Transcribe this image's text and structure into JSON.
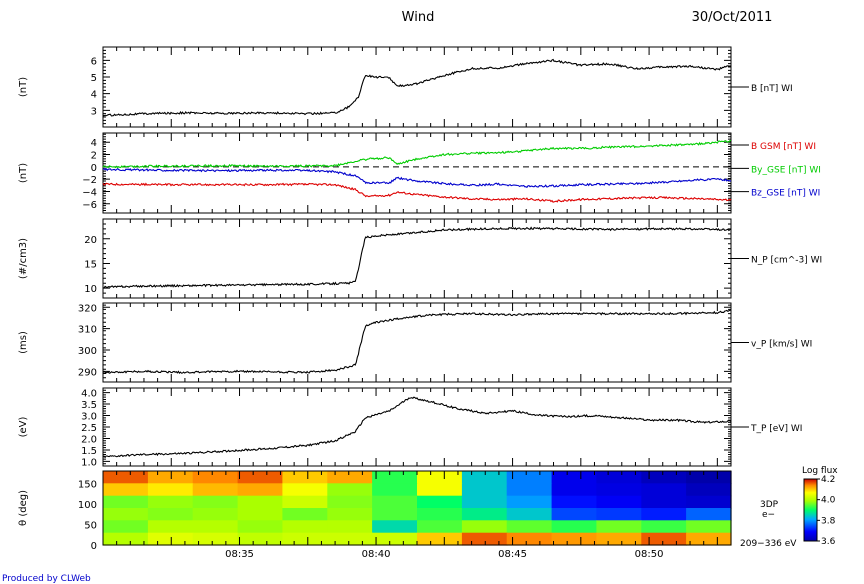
{
  "header": {
    "title": "Wind",
    "date": "30/Oct/2011"
  },
  "footer": {
    "credit": "Produced by CLWeb"
  },
  "chart_data": [
    {
      "type": "line",
      "panel": "magnetic-field-magnitude",
      "ylabel": "(nT)",
      "ylim": [
        2,
        6.8
      ],
      "yticks": [
        3,
        4,
        5,
        6
      ],
      "series": [
        {
          "name": "B [nT] WI",
          "color": "#000000",
          "points": [
            [
              0,
              2.7
            ],
            [
              3,
              2.8
            ],
            [
              6,
              2.85
            ],
            [
              9,
              2.82
            ],
            [
              12,
              2.85
            ],
            [
              15,
              2.8
            ],
            [
              17,
              2.85
            ],
            [
              18,
              3.2
            ],
            [
              18.7,
              3.8
            ],
            [
              19.2,
              5.1
            ],
            [
              20,
              5.0
            ],
            [
              21,
              4.95
            ],
            [
              21.5,
              4.45
            ],
            [
              23,
              4.6
            ],
            [
              25,
              5.1
            ],
            [
              27,
              5.5
            ],
            [
              29,
              5.55
            ],
            [
              31,
              5.8
            ],
            [
              33,
              6.0
            ],
            [
              35,
              5.7
            ],
            [
              37,
              5.8
            ],
            [
              39,
              5.5
            ],
            [
              41,
              5.6
            ],
            [
              43,
              5.65
            ],
            [
              45,
              5.45
            ],
            [
              46,
              5.7
            ]
          ]
        }
      ]
    },
    {
      "type": "line",
      "panel": "magnetic-field-components",
      "ylabel": "(nT)",
      "ylim": [
        -7.5,
        5.5
      ],
      "yticks": [
        -6,
        -4,
        -2,
        0,
        2,
        4
      ],
      "tick_labels": [
        "−6",
        "−4",
        "−2",
        "0",
        "2",
        "4"
      ],
      "reference_line": 0,
      "series": [
        {
          "name": "B GSM [nT] WI",
          "color": "#dd0000",
          "points": [
            [
              0,
              -2.8
            ],
            [
              5,
              -2.9
            ],
            [
              10,
              -2.9
            ],
            [
              15,
              -2.85
            ],
            [
              17,
              -2.9
            ],
            [
              18.5,
              -3.7
            ],
            [
              19.3,
              -4.8
            ],
            [
              21,
              -4.6
            ],
            [
              21.5,
              -4.1
            ],
            [
              23,
              -4.5
            ],
            [
              25,
              -4.9
            ],
            [
              27,
              -5.2
            ],
            [
              29,
              -5.3
            ],
            [
              31,
              -5.2
            ],
            [
              33,
              -5.6
            ],
            [
              35,
              -5.3
            ],
            [
              38,
              -5.1
            ],
            [
              41,
              -5.0
            ],
            [
              44,
              -5.2
            ],
            [
              46,
              -5.4
            ]
          ]
        },
        {
          "name": "By_GSE [nT] WI",
          "color": "#00cc00",
          "points": [
            [
              0,
              0.0
            ],
            [
              3,
              0.1
            ],
            [
              6,
              0.15
            ],
            [
              9,
              0.2
            ],
            [
              12,
              0.1
            ],
            [
              15,
              0.15
            ],
            [
              17,
              0.2
            ],
            [
              18.5,
              0.9
            ],
            [
              19.5,
              1.3
            ],
            [
              21,
              1.5
            ],
            [
              21.5,
              0.4
            ],
            [
              23,
              1.3
            ],
            [
              25,
              2.0
            ],
            [
              27,
              2.2
            ],
            [
              29,
              2.3
            ],
            [
              31,
              2.6
            ],
            [
              33,
              3.0
            ],
            [
              35,
              3.0
            ],
            [
              37,
              3.2
            ],
            [
              39,
              3.3
            ],
            [
              41,
              3.5
            ],
            [
              43,
              3.6
            ],
            [
              45,
              4.0
            ],
            [
              46,
              4.2
            ]
          ]
        },
        {
          "name": "Bz_GSE [nT] WI",
          "color": "#0000cc",
          "points": [
            [
              0,
              -0.4
            ],
            [
              3,
              -0.5
            ],
            [
              6,
              -0.6
            ],
            [
              9,
              -0.6
            ],
            [
              12,
              -0.55
            ],
            [
              15,
              -0.6
            ],
            [
              17,
              -0.8
            ],
            [
              18.5,
              -1.5
            ],
            [
              19.3,
              -2.6
            ],
            [
              21,
              -2.6
            ],
            [
              21.5,
              -1.8
            ],
            [
              23,
              -2.3
            ],
            [
              25,
              -2.7
            ],
            [
              27,
              -3.0
            ],
            [
              29,
              -2.8
            ],
            [
              31,
              -3.2
            ],
            [
              33,
              -3.1
            ],
            [
              35,
              -2.9
            ],
            [
              37,
              -2.8
            ],
            [
              39,
              -2.7
            ],
            [
              41,
              -2.5
            ],
            [
              43,
              -2.2
            ],
            [
              45,
              -2.0
            ],
            [
              46,
              -2.2
            ]
          ]
        }
      ]
    },
    {
      "type": "line",
      "panel": "proton-density",
      "ylabel": "(#/cm3)",
      "ylim": [
        8,
        24
      ],
      "yticks": [
        10,
        15,
        20
      ],
      "series": [
        {
          "name": "N_P [cm^-3] WI",
          "color": "#000000",
          "points": [
            [
              0,
              10.2
            ],
            [
              3,
              10.4
            ],
            [
              6,
              10.5
            ],
            [
              9,
              10.6
            ],
            [
              12,
              10.7
            ],
            [
              15,
              10.8
            ],
            [
              18,
              11.0
            ],
            [
              18.5,
              11.3
            ],
            [
              19.2,
              20.2
            ],
            [
              20,
              20.6
            ],
            [
              22,
              21.0
            ],
            [
              25,
              21.8
            ],
            [
              28,
              22.0
            ],
            [
              31,
              22.1
            ],
            [
              34,
              22.0
            ],
            [
              37,
              21.9
            ],
            [
              40,
              22.0
            ],
            [
              43,
              22.0
            ],
            [
              46,
              21.8
            ]
          ]
        }
      ]
    },
    {
      "type": "line",
      "panel": "proton-velocity",
      "ylabel": "(ms)",
      "ylim": [
        285,
        322
      ],
      "yticks": [
        290,
        300,
        310,
        320
      ],
      "series": [
        {
          "name": "v_P [km/s] WI",
          "color": "#000000",
          "points": [
            [
              0,
              289.5
            ],
            [
              3,
              290
            ],
            [
              6,
              289.5
            ],
            [
              9,
              290
            ],
            [
              12,
              289.8
            ],
            [
              15,
              289.5
            ],
            [
              17,
              290.5
            ],
            [
              18.5,
              293
            ],
            [
              19.2,
              311
            ],
            [
              20,
              313
            ],
            [
              22,
              315
            ],
            [
              24,
              316.5
            ],
            [
              27,
              317
            ],
            [
              30,
              316.5
            ],
            [
              33,
              317
            ],
            [
              36,
              317
            ],
            [
              39,
              317
            ],
            [
              42,
              317
            ],
            [
              45,
              317.5
            ],
            [
              46,
              318.5
            ]
          ]
        }
      ]
    },
    {
      "type": "line",
      "panel": "proton-temperature",
      "ylabel": "(eV)",
      "ylim": [
        0.8,
        4.2
      ],
      "yticks": [
        1.0,
        1.5,
        2.0,
        2.5,
        3.0,
        3.5,
        4.0
      ],
      "tick_labels": [
        "1.0",
        "1.5",
        "2.0",
        "2.5",
        "3.0",
        "3.5",
        "4.0"
      ],
      "series": [
        {
          "name": "T_P [eV] WI",
          "color": "#000000",
          "points": [
            [
              0,
              1.2
            ],
            [
              3,
              1.3
            ],
            [
              6,
              1.35
            ],
            [
              9,
              1.45
            ],
            [
              12,
              1.55
            ],
            [
              15,
              1.7
            ],
            [
              17,
              1.9
            ],
            [
              18.5,
              2.3
            ],
            [
              19.2,
              2.9
            ],
            [
              21,
              3.2
            ],
            [
              22.5,
              3.8
            ],
            [
              24,
              3.6
            ],
            [
              26,
              3.3
            ],
            [
              28,
              3.1
            ],
            [
              30,
              3.2
            ],
            [
              32,
              3.0
            ],
            [
              34,
              2.95
            ],
            [
              36,
              3.0
            ],
            [
              38,
              2.9
            ],
            [
              40,
              2.8
            ],
            [
              42,
              2.8
            ],
            [
              44,
              2.7
            ],
            [
              46,
              2.75
            ]
          ]
        }
      ]
    },
    {
      "type": "heatmap",
      "panel": "electron-pitch-angle",
      "ylabel": "θ (deg)",
      "ylim": [
        0,
        180
      ],
      "yticks": [
        0,
        50,
        100,
        150
      ],
      "side_label": [
        "3DP",
        "e−"
      ],
      "energy_label": "209−336 eV",
      "colorbar": {
        "title": "Log flux",
        "range": [
          3.6,
          4.2
        ],
        "ticks": [
          "4.2",
          "4.0",
          "3.8",
          "3.6"
        ]
      },
      "rows_top_to_bottom": 6,
      "values": [
        [
          4.16,
          4.12,
          4.14,
          4.16,
          4.1,
          4.12,
          3.92,
          4.06,
          3.84,
          3.78,
          3.67,
          3.65,
          3.62,
          3.6
        ],
        [
          4.1,
          4.08,
          4.11,
          4.12,
          4.06,
          3.98,
          3.92,
          4.06,
          3.84,
          3.78,
          3.67,
          3.66,
          3.65,
          3.62
        ],
        [
          3.96,
          3.98,
          3.97,
          3.99,
          4.02,
          3.97,
          3.94,
          3.9,
          3.84,
          3.8,
          3.7,
          3.68,
          3.65,
          3.64
        ],
        [
          3.98,
          3.97,
          3.98,
          3.99,
          3.96,
          3.98,
          3.94,
          3.92,
          3.88,
          3.84,
          3.74,
          3.73,
          3.71,
          3.76
        ],
        [
          3.96,
          4.0,
          4.0,
          3.98,
          4.0,
          4.0,
          3.86,
          3.94,
          3.98,
          3.95,
          3.92,
          3.96,
          3.93,
          3.96
        ],
        [
          4.0,
          4.04,
          4.03,
          4.01,
          4.02,
          4.02,
          4.02,
          4.1,
          4.16,
          4.14,
          4.13,
          4.12,
          4.16,
          4.12
        ]
      ]
    }
  ],
  "time_axis": {
    "range_minutes": [
      0,
      46
    ],
    "major_ticks": [
      {
        "t": 10,
        "label": "08:35"
      },
      {
        "t": 20,
        "label": "08:40"
      },
      {
        "t": 30,
        "label": "08:45"
      },
      {
        "t": 40,
        "label": "08:50"
      }
    ]
  }
}
